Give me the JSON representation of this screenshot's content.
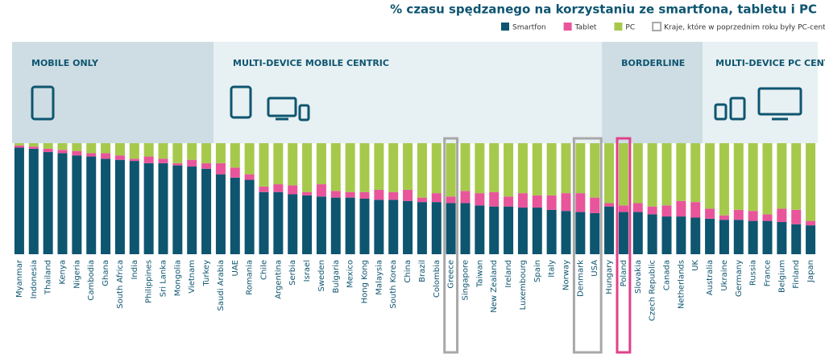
{
  "chart_data": {
    "type": "stacked_bar",
    "title": "% czasu spędzanego na korzystaniu ze smartfona, tabletu i PC",
    "categories": [
      "Myanmar",
      "Indonesia",
      "Thailand",
      "Kenya",
      "Nigeria",
      "Cambodia",
      "Ghana",
      "South Africa",
      "India",
      "Philippines",
      "Sri Lanka",
      "Mongolia",
      "Vietnam",
      "Turkey",
      "Saudi Arabia",
      "UAE",
      "Romania",
      "Chile",
      "Argentina",
      "Serbia",
      "Israel",
      "Sweden",
      "Bulgaria",
      "Mexico",
      "Hong Kong",
      "Malaysia",
      "South Korea",
      "China",
      "Brazil",
      "Colombia",
      "Greece",
      "Singapore",
      "Taiwan",
      "New Zealand",
      "Ireland",
      "Luxembourg",
      "Spain",
      "Italy",
      "Norway",
      "Denmark",
      "USA",
      "Hungary",
      "Poland",
      "Slovakia",
      "Czech Republic",
      "Canada",
      "Netherlands",
      "UK",
      "Australia",
      "Ukraine",
      "Germany",
      "Russia",
      "France",
      "Belgium",
      "Finland",
      "Japan"
    ],
    "series": [
      {
        "name": "Smartfon",
        "color": "#0e5570",
        "values": [
          96,
          95,
          92,
          91,
          89,
          88,
          86,
          85,
          84,
          82,
          82,
          80,
          79,
          77,
          72,
          69,
          67,
          56,
          56,
          54,
          53,
          52,
          51,
          51,
          50,
          49,
          49,
          48,
          47,
          47,
          46,
          46,
          44,
          43,
          43,
          42,
          42,
          40,
          39,
          38,
          37,
          43,
          38,
          38,
          36,
          34,
          34,
          33,
          32,
          31,
          31,
          30,
          30,
          29,
          27,
          26
        ]
      },
      {
        "name": "Tablet",
        "color": "#e8559a",
        "values": [
          2,
          2,
          3,
          3,
          4,
          3,
          5,
          4,
          2,
          6,
          4,
          2,
          6,
          5,
          10,
          9,
          5,
          5,
          7,
          8,
          3,
          11,
          6,
          5,
          6,
          9,
          7,
          10,
          4,
          8,
          6,
          11,
          11,
          13,
          9,
          13,
          11,
          13,
          16,
          17,
          14,
          3,
          6,
          8,
          7,
          10,
          14,
          14,
          9,
          4,
          9,
          9,
          6,
          12,
          13,
          4
        ]
      },
      {
        "name": "PC",
        "color": "#a6c94c",
        "values": [
          2,
          3,
          5,
          6,
          7,
          9,
          9,
          11,
          14,
          12,
          14,
          18,
          15,
          18,
          18,
          22,
          28,
          39,
          37,
          38,
          44,
          37,
          43,
          44,
          44,
          42,
          44,
          42,
          49,
          45,
          48,
          43,
          45,
          44,
          48,
          45,
          47,
          47,
          45,
          45,
          49,
          54,
          56,
          54,
          57,
          56,
          52,
          53,
          59,
          65,
          60,
          61,
          64,
          59,
          60,
          70
        ]
      }
    ],
    "ylim": [
      0,
      100
    ],
    "segments": [
      {
        "label": "MOBILE ONLY",
        "start": 0,
        "end": 13,
        "shade": "#cddde3"
      },
      {
        "label": "MULTI-DEVICE MOBILE CENTRIC",
        "start": 14,
        "end": 40,
        "shade": "#e7f0f2"
      },
      {
        "label": "BORDERLINE",
        "start": 41,
        "end": 47,
        "shade": "#cddde3"
      },
      {
        "label": "MULTI-DEVICE PC CENTRIC",
        "start": 48,
        "end": 55,
        "shade": "#e7f0f2"
      }
    ],
    "outline_legend": "Kraje, które w poprzednim roku były PC-centric",
    "outlines": [
      {
        "start": 30,
        "end": 30,
        "color": "#a8a8a8"
      },
      {
        "start": 39,
        "end": 40,
        "color": "#a8a8a8"
      },
      {
        "start": 42,
        "end": 42,
        "color": "#e0408a"
      }
    ]
  }
}
